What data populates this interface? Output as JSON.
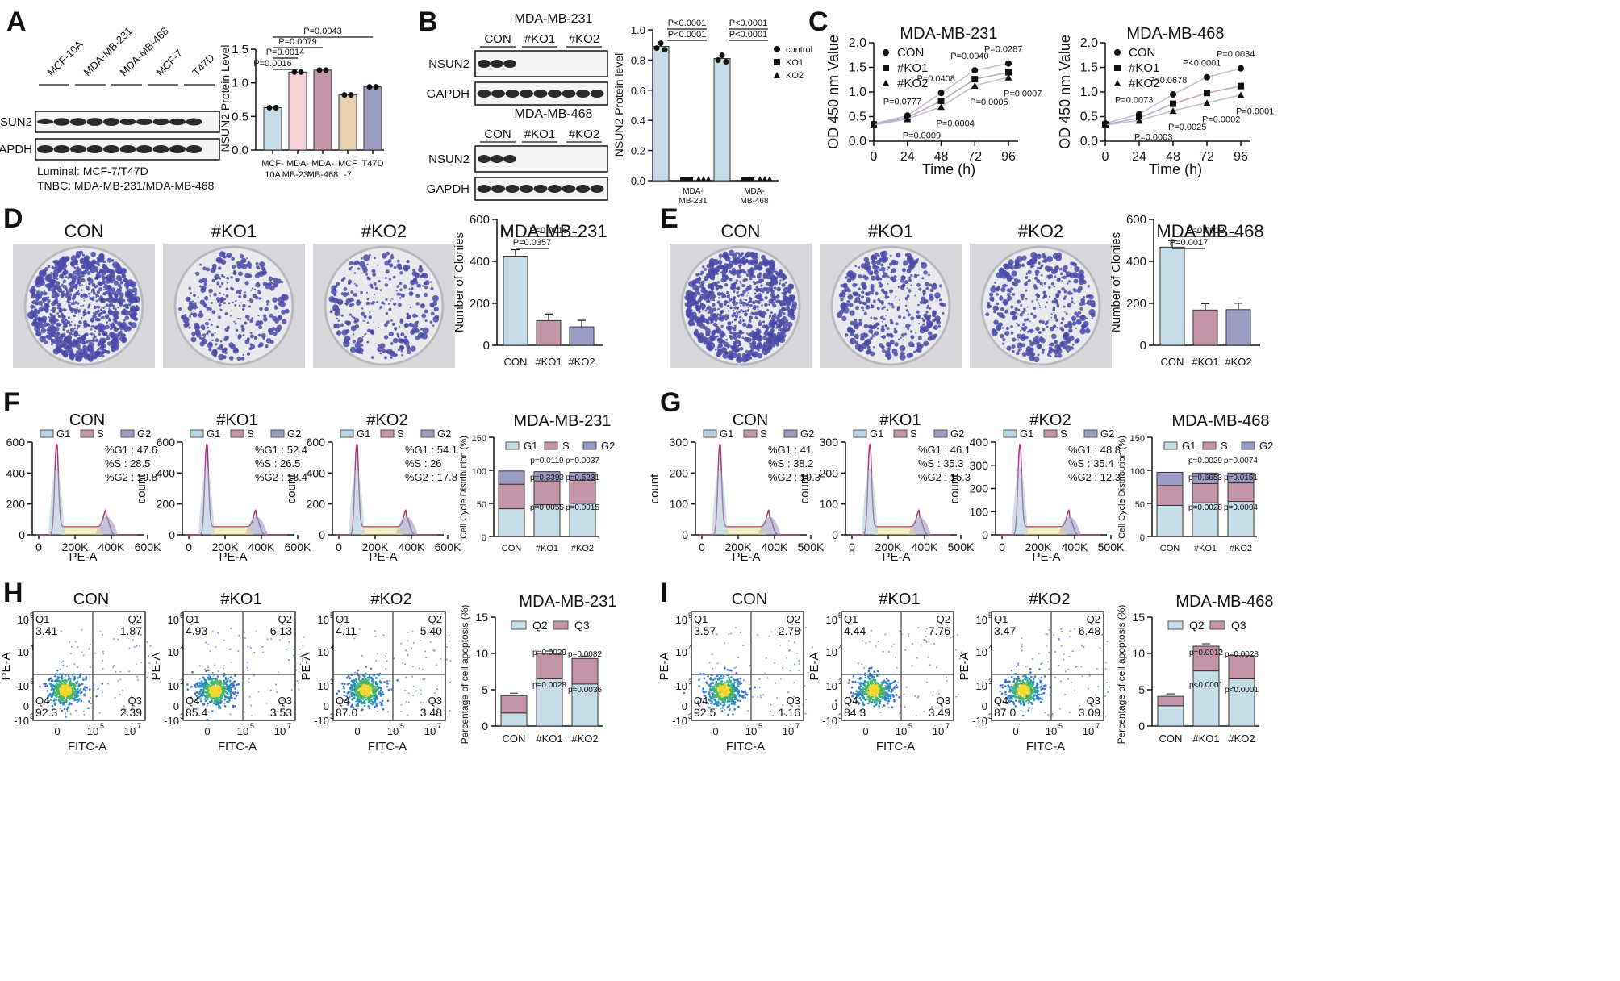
{
  "figure": {
    "panels": [
      "A",
      "B",
      "C",
      "D",
      "E",
      "F",
      "G",
      "H",
      "I"
    ],
    "colors": {
      "con": "#c6dce6",
      "ko1": "#c494a9",
      "ko2": "#9a9cc2",
      "mcf10a": "#c6dce6",
      "mda231": "#f6d2d7",
      "mda468": "#c494a9",
      "mcf7": "#e6d0b0",
      "t47d": "#9a9cc2",
      "plate": "#8080c8",
      "blot": "#2a2a2a"
    }
  },
  "panelA": {
    "blot_cols": [
      "MCF-10A",
      "MDA-MB-231",
      "MDA-MB-468",
      "MCF-7",
      "T47D"
    ],
    "rows": [
      "NSUN2",
      "GAPDH"
    ],
    "notes": [
      "Luminal: MCF-7/T47D",
      "TNBC: MDA-MB-231/MDA-MB-468"
    ],
    "pvals": [
      "P=0.0043",
      "P=0.0079",
      "P=0.0014",
      "P=0.0016"
    ],
    "chart_data": {
      "type": "bar",
      "title": "",
      "ylabel": "NSUN2  Protein Level",
      "categories": [
        "MCF-10A",
        "MDA-MB-231",
        "MDA-MB-468",
        "MCF-7",
        "T47D"
      ],
      "tick_labels": [
        [
          "MCF-",
          "10A"
        ],
        [
          "MDA-",
          "MB-231"
        ],
        [
          "MDA-",
          "MB-468"
        ],
        [
          "MCF",
          "-7"
        ],
        [
          "T47D",
          ""
        ]
      ],
      "values": [
        0.63,
        1.16,
        1.19,
        0.82,
        0.94
      ],
      "ylim": [
        0,
        1.5
      ],
      "yticks": [
        "0.0",
        "0.5",
        "1.0",
        "1.5"
      ]
    }
  },
  "panelB": {
    "blot1_title": "MDA-MB-231",
    "blot2_title": "MDA-MB-468",
    "groups": [
      "CON",
      "#KO1",
      "#KO2"
    ],
    "rows": [
      "NSUN2",
      "GAPDH"
    ],
    "pvals": [
      "P<0.0001",
      "P<0.0001",
      "P<0.0001",
      "P<0.0001"
    ],
    "chart_data": {
      "type": "bar",
      "ylabel": "NSUN2 Protein level",
      "categories": [
        [
          "MDA-",
          "MB-231"
        ],
        [
          "MDA-",
          "MB-468"
        ]
      ],
      "series": [
        {
          "name": "control",
          "values": [
            0.89,
            0.81
          ]
        },
        {
          "name": "KO1",
          "values": [
            0.0,
            0.0
          ]
        },
        {
          "name": "KO2",
          "values": [
            0.0,
            0.0
          ]
        }
      ],
      "ylim": [
        0,
        1.0
      ],
      "yticks": [
        "0.0",
        "0.2",
        "0.4",
        "0.6",
        "0.8",
        "1.0"
      ]
    }
  },
  "panelC": {
    "chart_data": [
      {
        "type": "line",
        "title": "MDA-MB-231",
        "xlabel": "Time (h)",
        "ylabel": "OD 450 nm Value",
        "x": [
          0,
          24,
          48,
          72,
          96
        ],
        "xticks": [
          "0",
          "24",
          "48",
          "72",
          "96"
        ],
        "ylim": [
          0,
          2.0
        ],
        "yticks": [
          "0.0",
          "0.5",
          "1.0",
          "1.5",
          "2.0"
        ],
        "series": [
          {
            "name": "CON",
            "values": [
              0.35,
              0.52,
              0.98,
              1.44,
              1.58
            ]
          },
          {
            "name": "#KO1",
            "values": [
              0.34,
              0.48,
              0.82,
              1.26,
              1.4
            ]
          },
          {
            "name": "#KO2",
            "values": [
              0.33,
              0.45,
              0.7,
              1.13,
              1.3
            ]
          }
        ],
        "pvals_above": [
          "P=0.0777",
          "P=0.0408",
          "P=0.0040",
          "P=0.0287"
        ],
        "pvals_below": [
          "P=0.0009",
          "P=0.0004",
          "P=0.0005",
          "P=0.0007"
        ]
      },
      {
        "type": "line",
        "title": "MDA-MB-468",
        "xlabel": "Time (h)",
        "ylabel": "OD 450 nm Value",
        "x": [
          0,
          24,
          48,
          72,
          96
        ],
        "xticks": [
          "0",
          "24",
          "48",
          "72",
          "96"
        ],
        "ylim": [
          0,
          2.0
        ],
        "yticks": [
          "0.0",
          "0.5",
          "1.0",
          "1.5",
          "2.0"
        ],
        "series": [
          {
            "name": "CON",
            "values": [
              0.36,
              0.55,
              0.95,
              1.3,
              1.48
            ]
          },
          {
            "name": "#KO1",
            "values": [
              0.34,
              0.47,
              0.76,
              0.98,
              1.12
            ]
          },
          {
            "name": "#KO2",
            "values": [
              0.33,
              0.42,
              0.62,
              0.78,
              0.94
            ]
          }
        ],
        "pvals_above": [
          "P=0.0073",
          "P=0.0678",
          "P<0.0001",
          "P=0.0034"
        ],
        "pvals_below": [
          "P=0.0003",
          "P=0.0025",
          "P=0.0002",
          "P=0.0001"
        ]
      }
    ]
  },
  "panelD": {
    "plates": [
      "CON",
      "#KO1",
      "#KO2"
    ],
    "pvals": [
      "P=0.0016",
      "P=0.0357"
    ],
    "chart_data": {
      "type": "bar",
      "title": "MDA-MB-231",
      "ylabel": "Number of Clonies",
      "categories": [
        "CON",
        "#KO1",
        "#KO2"
      ],
      "values": [
        425,
        118,
        88
      ],
      "ylim": [
        0,
        600
      ],
      "yticks": [
        "0",
        "200",
        "400",
        "600"
      ]
    }
  },
  "panelE": {
    "plates": [
      "CON",
      "#KO1",
      "#KO2"
    ],
    "pvals": [
      "P=0.0012",
      "P=0.0017"
    ],
    "chart_data": {
      "type": "bar",
      "title": "MDA-MB-468",
      "ylabel": "Number of Clonies",
      "categories": [
        "CON",
        "#KO1",
        "#KO2"
      ],
      "values": [
        468,
        168,
        170
      ],
      "ylim": [
        0,
        600
      ],
      "yticks": [
        "0",
        "200",
        "400",
        "600"
      ]
    }
  },
  "panelF": {
    "histos": [
      {
        "title": "CON",
        "g1": "%G1 : 47.6",
        "s": "%S : 28.5",
        "g2": "%G2 : 19.8",
        "yticks": [
          "0",
          "200",
          "400",
          "600"
        ]
      },
      {
        "title": "#KO1",
        "g1": "%G1 : 52.4",
        "s": "%S : 26.5",
        "g2": "%G2 : 18.4",
        "yticks": [
          "0",
          "200",
          "400",
          "600"
        ]
      },
      {
        "title": "#KO2",
        "g1": "%G1 : 54.1",
        "s": "%S : 26",
        "g2": "%G2 : 17.8",
        "yticks": [
          "0",
          "200",
          "400",
          "600"
        ]
      }
    ],
    "xticks": [
      "0",
      "200K",
      "400K",
      "600K"
    ],
    "xlabel": "PE-A",
    "ylabel": "count",
    "legend": [
      "G1",
      "S",
      "G2"
    ],
    "bar_pvals": [
      "p=0.0119",
      "p=0.0037",
      "p=0.3393",
      "p=0.5231",
      "p=0.0055",
      "p=0.0015"
    ],
    "chart_data": {
      "type": "bar",
      "title": "MDA-MB-231",
      "ylabel": "Cell Cycle Distribution (%)",
      "categories": [
        "CON",
        "#KO1",
        "#KO2"
      ],
      "series": [
        {
          "name": "G1",
          "values": [
            42,
            48,
            50
          ]
        },
        {
          "name": "S",
          "values": [
            37,
            36,
            35
          ]
        },
        {
          "name": "G2",
          "values": [
            20,
            14,
            12
          ]
        }
      ],
      "ylim": [
        0,
        150
      ],
      "yticks": [
        "0",
        "50",
        "100",
        "150"
      ]
    }
  },
  "panelG": {
    "histos": [
      {
        "title": "CON",
        "g1": "%G1 : 41",
        "s": "%S : 38.2",
        "g2": "%G2 : 19.3",
        "yticks": [
          "0",
          "100",
          "200",
          "300"
        ]
      },
      {
        "title": "#KO1",
        "g1": "%G1 : 46.1",
        "s": "%S : 35.3",
        "g2": "%G2 : 15.3",
        "yticks": [
          "0",
          "100",
          "200",
          "300"
        ]
      },
      {
        "title": "#KO2",
        "g1": "%G1 : 48.8",
        "s": "%S : 35.4",
        "g2": "%G2 : 12.3",
        "yticks": [
          "0",
          "100",
          "200",
          "300",
          "400"
        ]
      }
    ],
    "xticks": [
      "0",
      "200K",
      "400K",
      "500K"
    ],
    "xlabel": "PE-A",
    "ylabel": "count",
    "legend": [
      "G1",
      "S",
      "G2"
    ],
    "bar_pvals": [
      "p=0.0029",
      "p=0.0074",
      "p=0.6653",
      "p=0.0151",
      "p=0.0028",
      "p=0.0004"
    ],
    "chart_data": {
      "type": "bar",
      "title": "MDA-MB-468",
      "ylabel": "Cell Cycle Distribution (%)",
      "categories": [
        "CON",
        "#KO1",
        "#KO2"
      ],
      "series": [
        {
          "name": "G1",
          "values": [
            47,
            51,
            53
          ]
        },
        {
          "name": "S",
          "values": [
            30,
            29,
            28
          ]
        },
        {
          "name": "G2",
          "values": [
            20,
            16,
            15
          ]
        }
      ],
      "ylim": [
        0,
        150
      ],
      "yticks": [
        "0",
        "50",
        "100",
        "150"
      ]
    }
  },
  "panelH": {
    "plots": [
      {
        "title": "CON",
        "q1": "3.41",
        "q2": "1.87",
        "q3": "2.39",
        "q4": "92.3"
      },
      {
        "title": "#KO1",
        "q1": "4.93",
        "q2": "6.13",
        "q3": "3.53",
        "q4": "85.4"
      },
      {
        "title": "#KO2",
        "q1": "4.11",
        "q2": "5.40",
        "q3": "3.48",
        "q4": "87.0"
      }
    ],
    "qlabels": [
      "Q1",
      "Q2",
      "Q3",
      "Q4"
    ],
    "xlabel": "FITC-A",
    "ylabel": "PE-A",
    "bar_pvals": [
      "p=0.0029",
      "p=0.0082",
      "p=0.0028",
      "p=0.0036"
    ],
    "chart_data": {
      "type": "bar",
      "title": "MDA-MB-231",
      "ylabel": "Percentage of cell apoptosis (%)",
      "categories": [
        "CON",
        "#KO1",
        "#KO2"
      ],
      "series": [
        {
          "name": "Q2",
          "values": [
            1.8,
            6.5,
            5.8
          ]
        },
        {
          "name": "Q3",
          "values": [
            2.4,
            3.5,
            3.5
          ]
        }
      ],
      "ylim": [
        0,
        15
      ],
      "yticks": [
        "0",
        "5",
        "10",
        "15"
      ]
    }
  },
  "panelI": {
    "plots": [
      {
        "title": "CON",
        "q1": "3.57",
        "q2": "2.78",
        "q3": "1.16",
        "q4": "92.5"
      },
      {
        "title": "#KO1",
        "q1": "4.44",
        "q2": "7.76",
        "q3": "3.49",
        "q4": "84.3"
      },
      {
        "title": "#KO2",
        "q1": "3.47",
        "q2": "6.48",
        "q3": "3.09",
        "q4": "87.0"
      }
    ],
    "qlabels": [
      "Q1",
      "Q2",
      "Q3",
      "Q4"
    ],
    "xlabel": "FITC-A",
    "ylabel": "PE-A",
    "bar_pvals": [
      "p=0.0012",
      "p=0.0028",
      "p<0.0001",
      "p<0.0001"
    ],
    "chart_data": {
      "type": "bar",
      "title": "MDA-MB-468",
      "ylabel": "Percentage of cell apoptosis (%)",
      "categories": [
        "CON",
        "#KO1",
        "#KO2"
      ],
      "series": [
        {
          "name": "Q2",
          "values": [
            2.8,
            7.6,
            6.5
          ]
        },
        {
          "name": "Q3",
          "values": [
            1.3,
            3.4,
            3.2
          ]
        }
      ],
      "ylim": [
        0,
        15
      ],
      "yticks": [
        "0",
        "5",
        "10",
        "15"
      ]
    }
  }
}
